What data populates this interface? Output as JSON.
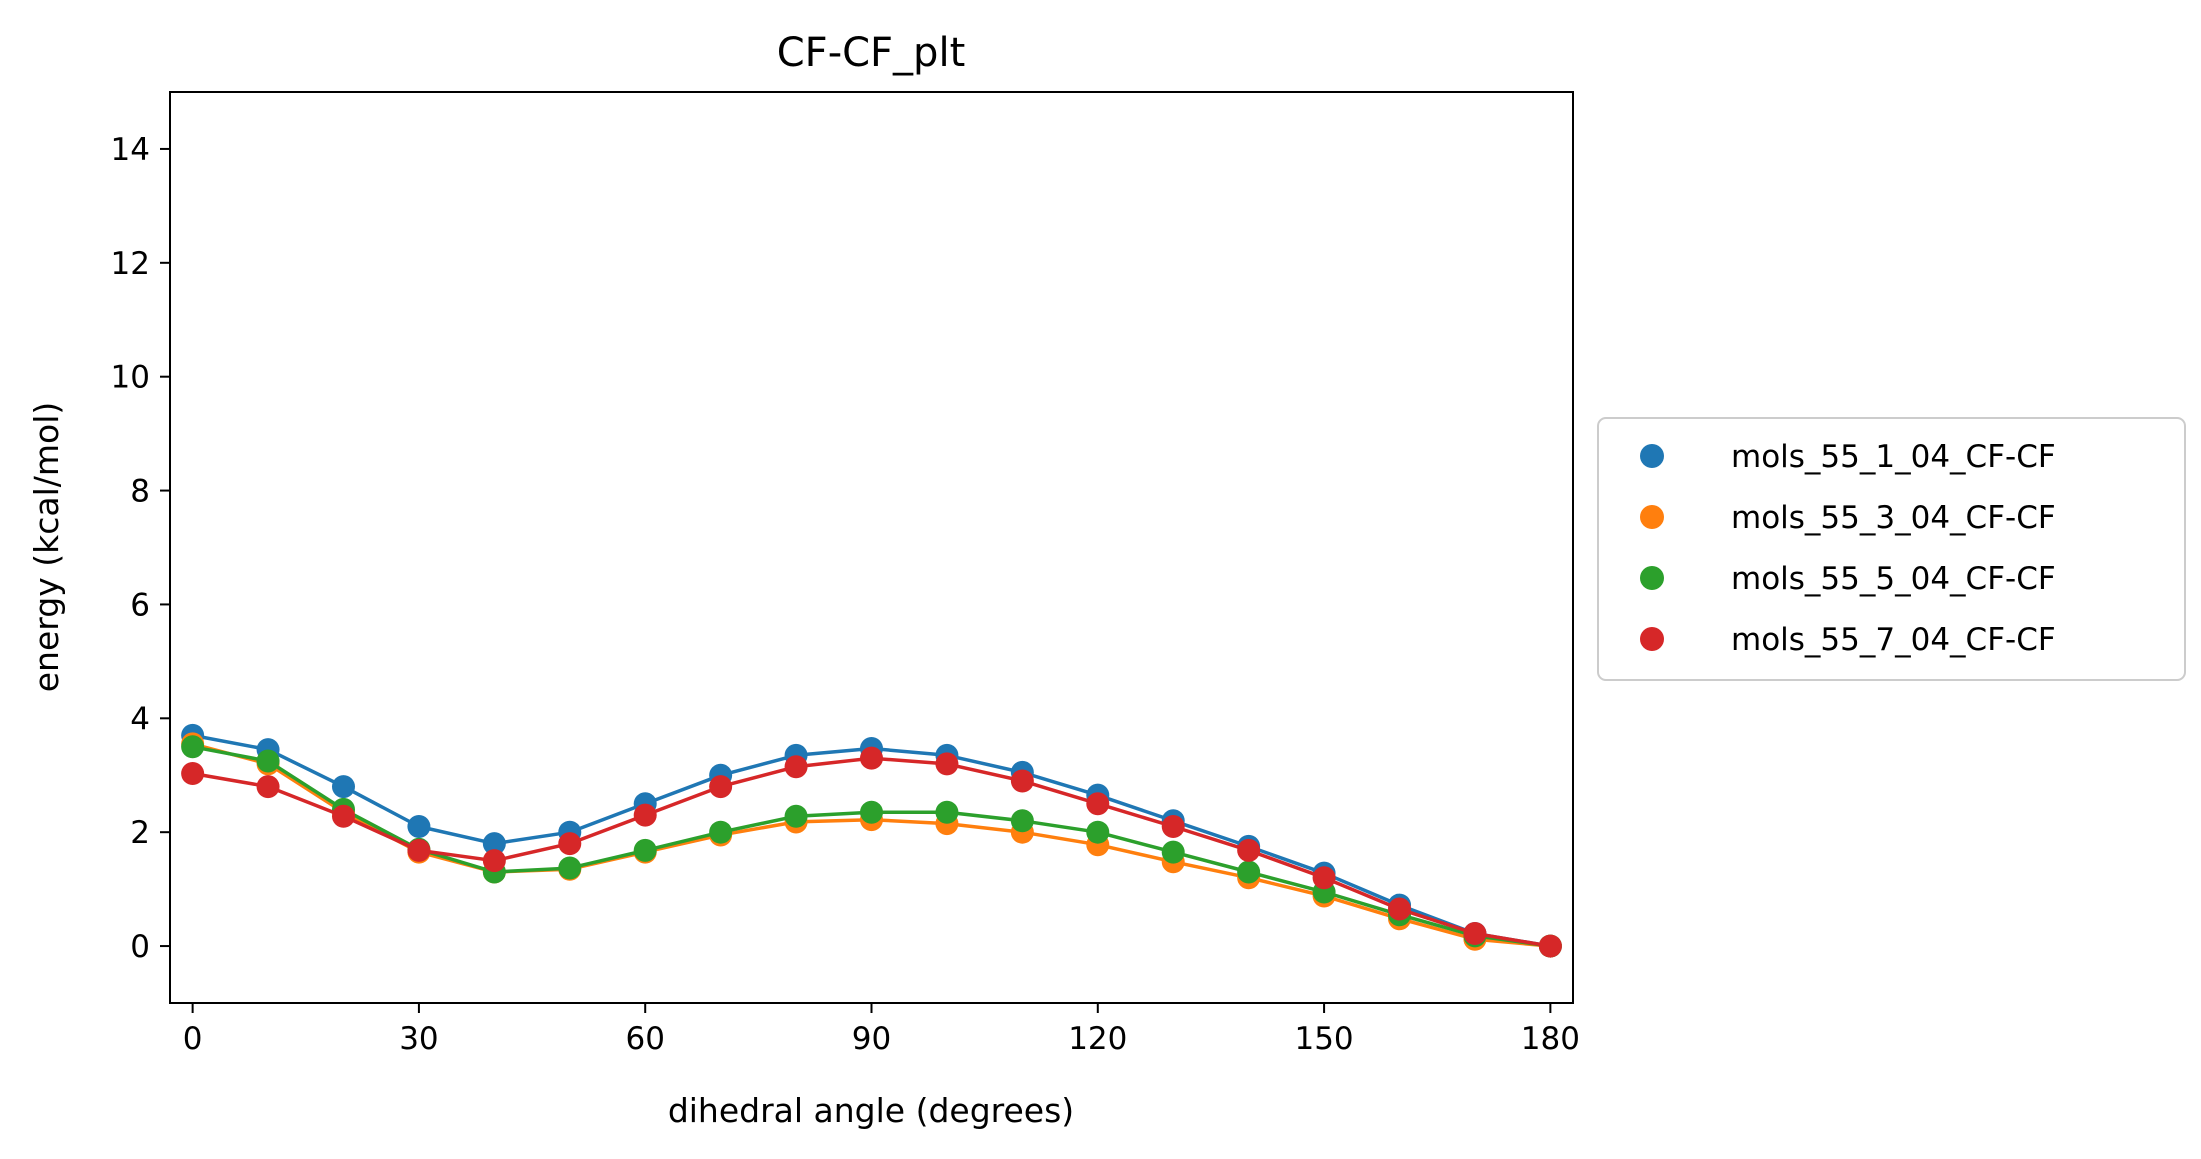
{
  "chart_data": {
    "type": "line",
    "title": "CF-CF_plt",
    "xlabel": "dihedral angle (degrees)",
    "ylabel": "energy (kcal/mol)",
    "xlim": [
      -3,
      183
    ],
    "ylim": [
      -1,
      15
    ],
    "xticks": [
      0,
      30,
      60,
      90,
      120,
      150,
      180
    ],
    "yticks": [
      0,
      2,
      4,
      6,
      8,
      10,
      12,
      14
    ],
    "grid": false,
    "legend_position": "center-right outside",
    "markers": "filled circles with connecting line",
    "x": [
      0,
      10,
      20,
      30,
      40,
      50,
      60,
      70,
      80,
      90,
      100,
      110,
      120,
      130,
      140,
      150,
      160,
      170,
      180
    ],
    "series": [
      {
        "name": "mols_55_1_04_CF-CF",
        "color": "#1f77b4",
        "values": [
          3.7,
          3.45,
          2.8,
          2.1,
          1.8,
          2.0,
          2.5,
          3.0,
          3.35,
          3.47,
          3.35,
          3.05,
          2.65,
          2.2,
          1.75,
          1.28,
          0.72,
          0.22,
          0.0
        ]
      },
      {
        "name": "mols_55_3_04_CF-CF",
        "color": "#ff7f0e",
        "values": [
          3.55,
          3.2,
          2.35,
          1.65,
          1.3,
          1.35,
          1.65,
          1.95,
          2.18,
          2.22,
          2.15,
          2.0,
          1.78,
          1.48,
          1.2,
          0.88,
          0.48,
          0.12,
          0.0
        ]
      },
      {
        "name": "mols_55_5_04_CF-CF",
        "color": "#2ca02c",
        "values": [
          3.5,
          3.25,
          2.4,
          1.7,
          1.3,
          1.37,
          1.68,
          2.0,
          2.28,
          2.35,
          2.35,
          2.2,
          2.0,
          1.65,
          1.3,
          0.95,
          0.55,
          0.18,
          0.0
        ]
      },
      {
        "name": "mols_55_7_04_CF-CF",
        "color": "#d62728",
        "values": [
          3.03,
          2.8,
          2.28,
          1.68,
          1.5,
          1.8,
          2.3,
          2.8,
          3.15,
          3.3,
          3.2,
          2.9,
          2.5,
          2.1,
          1.68,
          1.2,
          0.65,
          0.22,
          0.0
        ]
      }
    ]
  }
}
